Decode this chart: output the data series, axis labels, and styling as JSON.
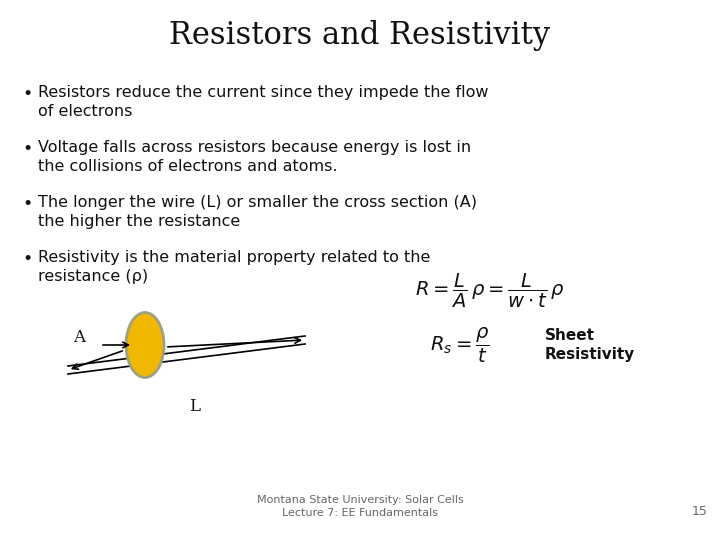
{
  "title": "Resistors and Resistivity",
  "title_fontsize": 22,
  "title_font": "serif",
  "background_color": "#ffffff",
  "bullet_points": [
    "Resistors reduce the current since they impede the flow\nof electrons",
    "Voltage falls across resistors because energy is lost in\nthe collisions of electrons and atoms.",
    "The longer the wire (L) or smaller the cross section (A)\nthe higher the resistance",
    "Resistivity is the material property related to the\nresistance (ρ)"
  ],
  "bullet_fontsize": 11.5,
  "bullet_font": "sans-serif",
  "footer_text": "Montana State University: Solar Cells\nLecture 7: EE Fundamentals",
  "footer_fontsize": 8,
  "page_number": "15",
  "ellipse_color": "#f0b800",
  "ellipse_edge_color": "#a0a080",
  "formula1": "$R = \\dfrac{L}{A}\\,\\rho = \\dfrac{L}{w \\cdot t}\\,\\rho$",
  "formula2": "$R_s = \\dfrac{\\rho}{t}$",
  "sheet_resistivity_label": "Sheet\nResistivity",
  "label_A": "A",
  "label_L": "L"
}
